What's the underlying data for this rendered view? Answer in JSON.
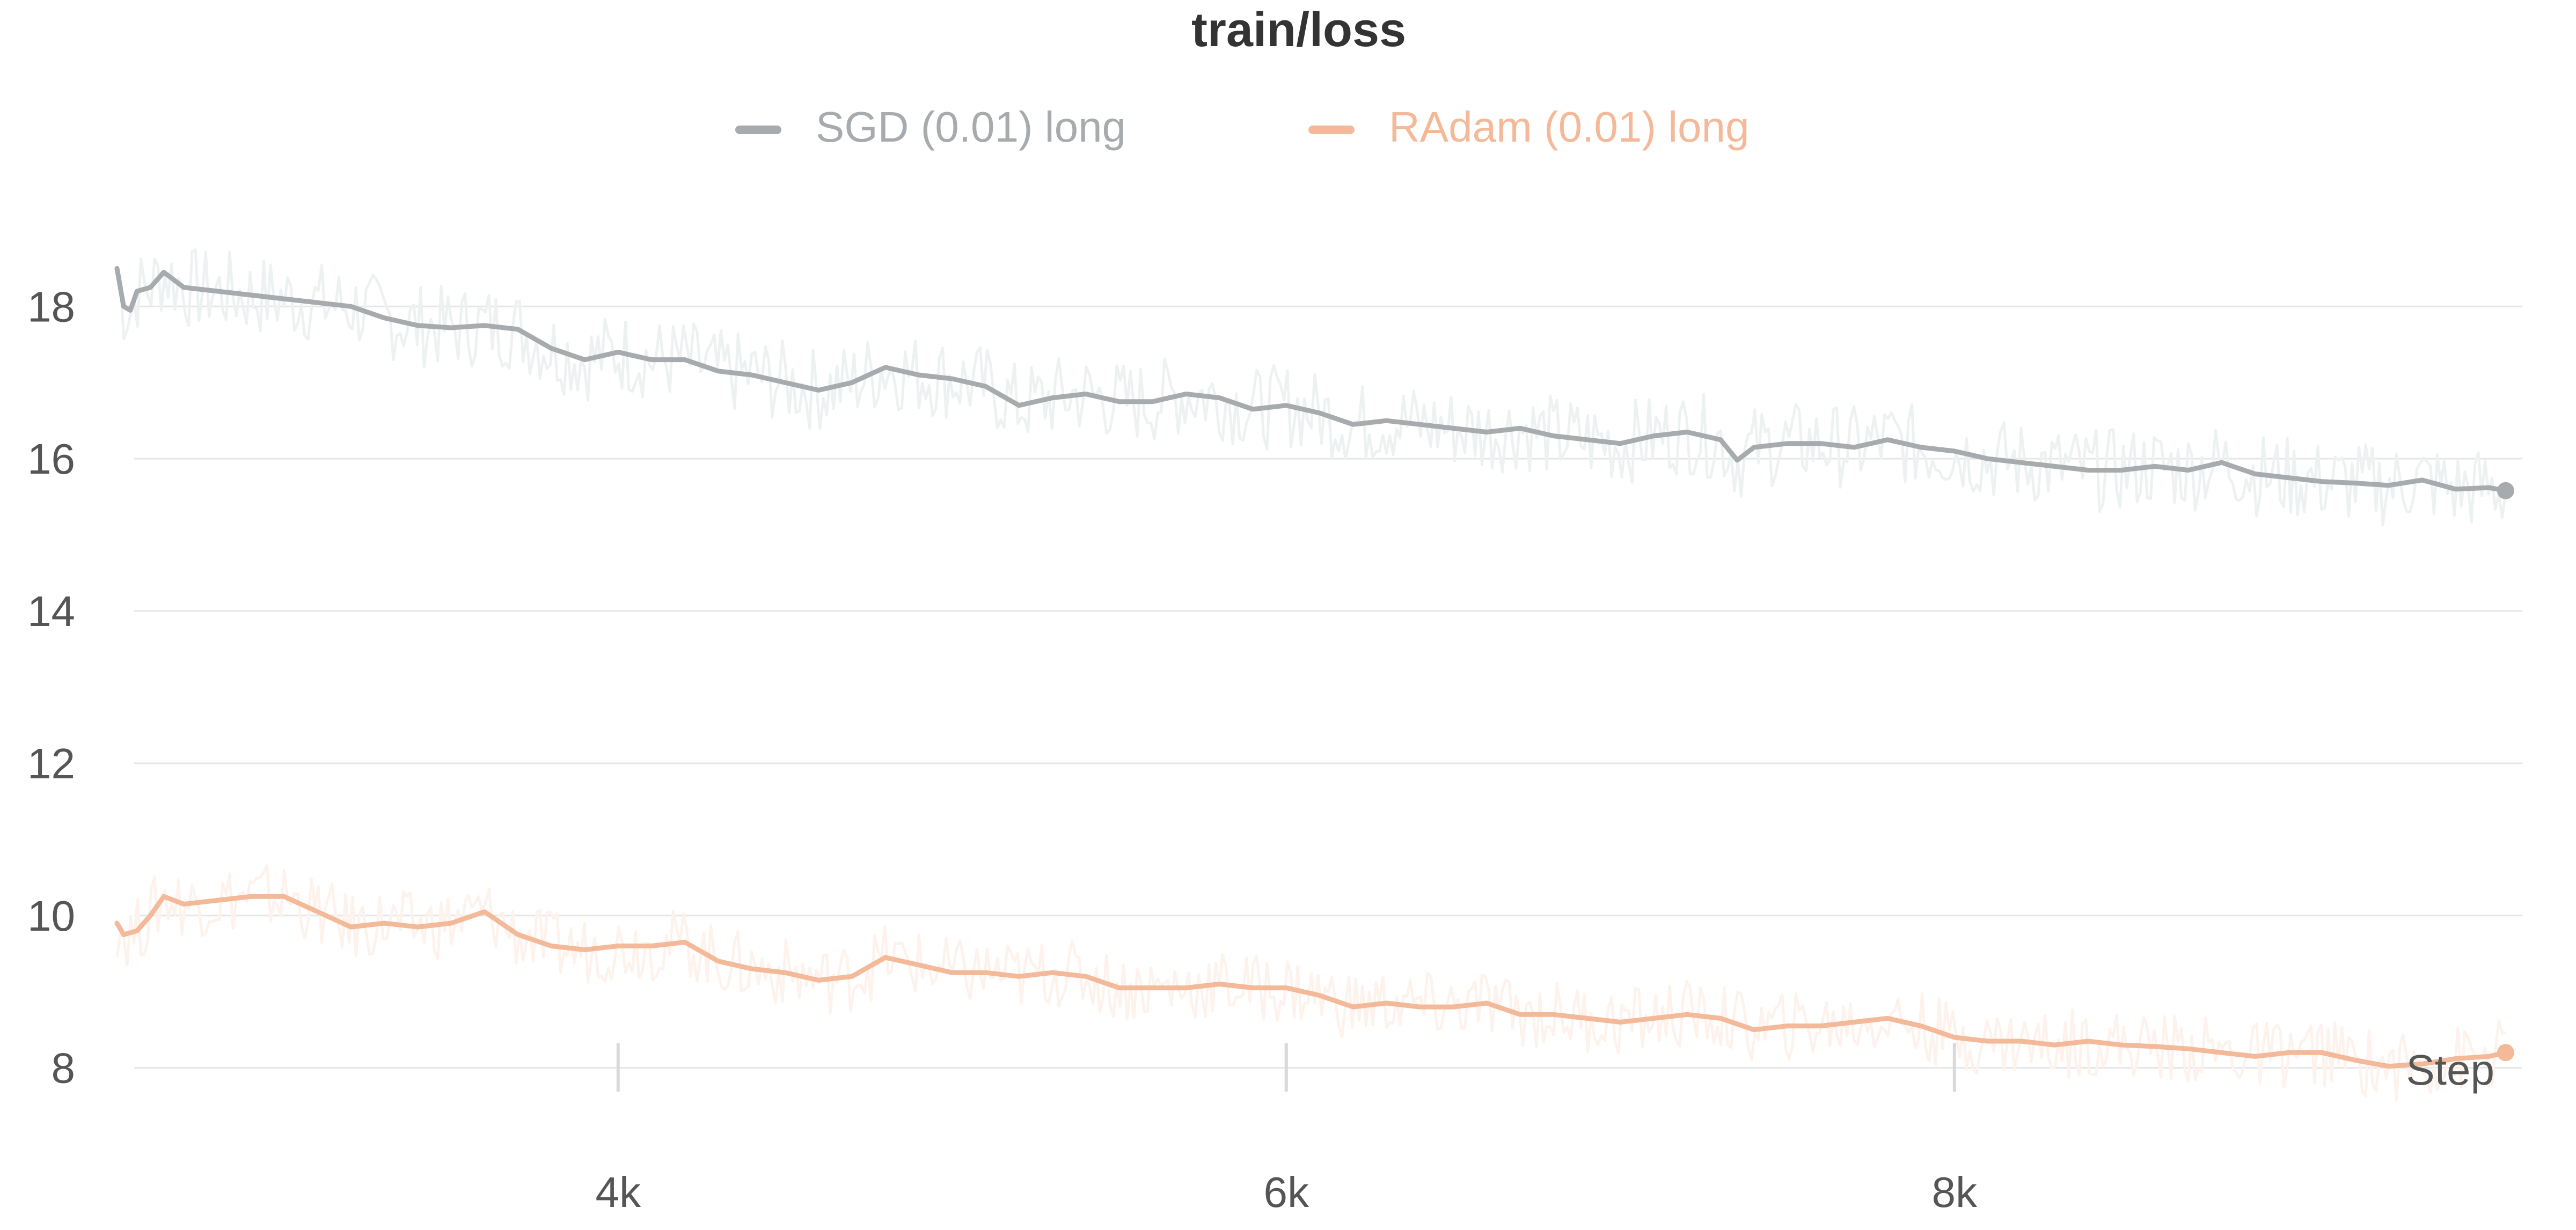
{
  "chart_data": {
    "type": "line",
    "title": "train/loss",
    "xlabel": "Step",
    "ylabel": "",
    "xlim": [
      2500,
      9700
    ],
    "ylim": [
      7.3,
      19.7
    ],
    "x_ticks": [
      4000,
      6000,
      8000
    ],
    "x_tick_labels": [
      "4k",
      "6k",
      "8k"
    ],
    "y_ticks": [
      8,
      10,
      12,
      14,
      16,
      18
    ],
    "y_tick_labels": [
      "8",
      "10",
      "12",
      "14",
      "16",
      "18"
    ],
    "grid": "horizontal",
    "legend_position": "top-center",
    "series": [
      {
        "name": "SGD (0.01) long",
        "color": "#a7abad",
        "raw_color": "#eef1f2",
        "raw_spread": 0.55,
        "points": [
          [
            2500,
            18.5
          ],
          [
            2520,
            18.0
          ],
          [
            2540,
            17.95
          ],
          [
            2560,
            18.2
          ],
          [
            2600,
            18.25
          ],
          [
            2640,
            18.45
          ],
          [
            2700,
            18.25
          ],
          [
            2800,
            18.2
          ],
          [
            2900,
            18.15
          ],
          [
            3000,
            18.1
          ],
          [
            3100,
            18.05
          ],
          [
            3200,
            18.0
          ],
          [
            3300,
            17.85
          ],
          [
            3400,
            17.75
          ],
          [
            3500,
            17.72
          ],
          [
            3600,
            17.75
          ],
          [
            3700,
            17.7
          ],
          [
            3800,
            17.45
          ],
          [
            3900,
            17.3
          ],
          [
            4000,
            17.4
          ],
          [
            4100,
            17.3
          ],
          [
            4200,
            17.3
          ],
          [
            4300,
            17.15
          ],
          [
            4400,
            17.1
          ],
          [
            4500,
            17.0
          ],
          [
            4600,
            16.9
          ],
          [
            4700,
            17.0
          ],
          [
            4800,
            17.2
          ],
          [
            4900,
            17.1
          ],
          [
            5000,
            17.05
          ],
          [
            5100,
            16.95
          ],
          [
            5200,
            16.7
          ],
          [
            5300,
            16.8
          ],
          [
            5400,
            16.85
          ],
          [
            5500,
            16.75
          ],
          [
            5600,
            16.75
          ],
          [
            5700,
            16.85
          ],
          [
            5800,
            16.8
          ],
          [
            5900,
            16.65
          ],
          [
            6000,
            16.7
          ],
          [
            6100,
            16.6
          ],
          [
            6200,
            16.45
          ],
          [
            6300,
            16.5
          ],
          [
            6400,
            16.45
          ],
          [
            6500,
            16.4
          ],
          [
            6600,
            16.35
          ],
          [
            6700,
            16.4
          ],
          [
            6800,
            16.3
          ],
          [
            6900,
            16.25
          ],
          [
            7000,
            16.2
          ],
          [
            7100,
            16.3
          ],
          [
            7200,
            16.35
          ],
          [
            7300,
            16.25
          ],
          [
            7350,
            15.98
          ],
          [
            7400,
            16.15
          ],
          [
            7500,
            16.2
          ],
          [
            7600,
            16.2
          ],
          [
            7700,
            16.15
          ],
          [
            7800,
            16.25
          ],
          [
            7900,
            16.15
          ],
          [
            8000,
            16.1
          ],
          [
            8100,
            16.0
          ],
          [
            8200,
            15.95
          ],
          [
            8300,
            15.9
          ],
          [
            8400,
            15.85
          ],
          [
            8500,
            15.85
          ],
          [
            8600,
            15.9
          ],
          [
            8700,
            15.85
          ],
          [
            8800,
            15.95
          ],
          [
            8900,
            15.8
          ],
          [
            9000,
            15.75
          ],
          [
            9100,
            15.7
          ],
          [
            9200,
            15.68
          ],
          [
            9300,
            15.65
          ],
          [
            9400,
            15.72
          ],
          [
            9500,
            15.6
          ],
          [
            9600,
            15.62
          ],
          [
            9650,
            15.58
          ]
        ]
      },
      {
        "name": "RAdam (0.01) long",
        "color": "#f3b998",
        "raw_color": "#fdf2ec",
        "raw_spread": 0.45,
        "points": [
          [
            2500,
            9.9
          ],
          [
            2520,
            9.75
          ],
          [
            2560,
            9.8
          ],
          [
            2600,
            10.0
          ],
          [
            2640,
            10.25
          ],
          [
            2700,
            10.15
          ],
          [
            2800,
            10.2
          ],
          [
            2900,
            10.25
          ],
          [
            3000,
            10.25
          ],
          [
            3100,
            10.05
          ],
          [
            3200,
            9.85
          ],
          [
            3300,
            9.9
          ],
          [
            3400,
            9.85
          ],
          [
            3500,
            9.9
          ],
          [
            3600,
            10.05
          ],
          [
            3700,
            9.75
          ],
          [
            3800,
            9.6
          ],
          [
            3900,
            9.55
          ],
          [
            4000,
            9.6
          ],
          [
            4100,
            9.6
          ],
          [
            4200,
            9.65
          ],
          [
            4300,
            9.4
          ],
          [
            4400,
            9.3
          ],
          [
            4500,
            9.25
          ],
          [
            4600,
            9.15
          ],
          [
            4700,
            9.2
          ],
          [
            4800,
            9.45
          ],
          [
            4900,
            9.35
          ],
          [
            5000,
            9.25
          ],
          [
            5100,
            9.25
          ],
          [
            5200,
            9.2
          ],
          [
            5300,
            9.25
          ],
          [
            5400,
            9.2
          ],
          [
            5500,
            9.05
          ],
          [
            5600,
            9.05
          ],
          [
            5700,
            9.05
          ],
          [
            5800,
            9.1
          ],
          [
            5900,
            9.05
          ],
          [
            6000,
            9.05
          ],
          [
            6100,
            8.95
          ],
          [
            6200,
            8.8
          ],
          [
            6300,
            8.85
          ],
          [
            6400,
            8.8
          ],
          [
            6500,
            8.8
          ],
          [
            6600,
            8.85
          ],
          [
            6700,
            8.7
          ],
          [
            6800,
            8.7
          ],
          [
            6900,
            8.65
          ],
          [
            7000,
            8.6
          ],
          [
            7100,
            8.65
          ],
          [
            7200,
            8.7
          ],
          [
            7300,
            8.65
          ],
          [
            7400,
            8.5
          ],
          [
            7500,
            8.55
          ],
          [
            7600,
            8.55
          ],
          [
            7700,
            8.6
          ],
          [
            7800,
            8.65
          ],
          [
            7900,
            8.55
          ],
          [
            8000,
            8.4
          ],
          [
            8100,
            8.35
          ],
          [
            8200,
            8.35
          ],
          [
            8300,
            8.3
          ],
          [
            8400,
            8.35
          ],
          [
            8500,
            8.3
          ],
          [
            8600,
            8.28
          ],
          [
            8700,
            8.25
          ],
          [
            8800,
            8.2
          ],
          [
            8900,
            8.15
          ],
          [
            9000,
            8.2
          ],
          [
            9100,
            8.2
          ],
          [
            9200,
            8.1
          ],
          [
            9300,
            8.02
          ],
          [
            9400,
            8.05
          ],
          [
            9500,
            8.12
          ],
          [
            9600,
            8.15
          ],
          [
            9650,
            8.2
          ]
        ]
      }
    ]
  }
}
